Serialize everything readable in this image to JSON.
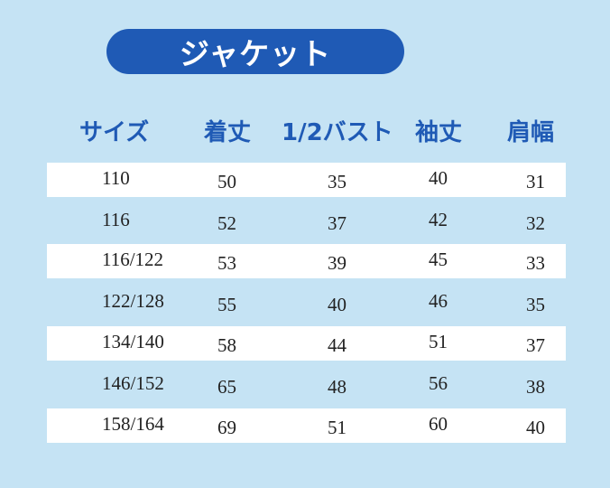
{
  "title": "ジャケット",
  "headers": {
    "size": "サイズ",
    "length": "着丈",
    "bust": "1/2バスト",
    "sleeve": "袖丈",
    "shoulder": "肩幅"
  },
  "rows": [
    {
      "size": "110",
      "length": "50",
      "bust": "35",
      "sleeve": "40",
      "shoulder": "31"
    },
    {
      "size": "116",
      "length": "52",
      "bust": "37",
      "sleeve": "42",
      "shoulder": "32"
    },
    {
      "size": "116/122",
      "length": "53",
      "bust": "39",
      "sleeve": "45",
      "shoulder": "33"
    },
    {
      "size": "122/128",
      "length": "55",
      "bust": "40",
      "sleeve": "46",
      "shoulder": "35"
    },
    {
      "size": "134/140",
      "length": "58",
      "bust": "44",
      "sleeve": "51",
      "shoulder": "37"
    },
    {
      "size": "146/152",
      "length": "65",
      "bust": "48",
      "sleeve": "56",
      "shoulder": "38"
    },
    {
      "size": "158/164",
      "length": "69",
      "bust": "51",
      "sleeve": "60",
      "shoulder": "40"
    }
  ],
  "colors": {
    "background": "#c5e3f4",
    "accent": "#1f5ab5",
    "row_stripe": "#ffffff"
  }
}
